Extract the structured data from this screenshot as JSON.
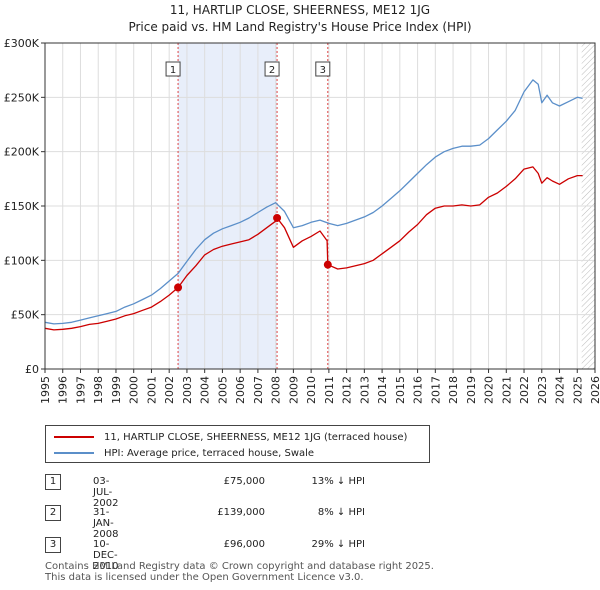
{
  "chart_data": {
    "type": "line",
    "title": "11, HARTLIP CLOSE, SHEERNESS, ME12 1JG",
    "subtitle": "Price paid vs. HM Land Registry's House Price Index (HPI)",
    "xlabel": "",
    "ylabel": "",
    "xlim": [
      1995,
      2026
    ],
    "ylim": [
      0,
      300000
    ],
    "x_ticks": [
      "1995",
      "1996",
      "1997",
      "1998",
      "1999",
      "2000",
      "2001",
      "2002",
      "2003",
      "2004",
      "2005",
      "2006",
      "2007",
      "2008",
      "2009",
      "2010",
      "2011",
      "2012",
      "2013",
      "2014",
      "2015",
      "2016",
      "2017",
      "2018",
      "2019",
      "2020",
      "2021",
      "2022",
      "2023",
      "2024",
      "2025",
      "2026"
    ],
    "y_ticks": [
      {
        "value": 0,
        "label": "£0"
      },
      {
        "value": 50000,
        "label": "£50K"
      },
      {
        "value": 100000,
        "label": "£100K"
      },
      {
        "value": 150000,
        "label": "£150K"
      },
      {
        "value": 200000,
        "label": "£200K"
      },
      {
        "value": 250000,
        "label": "£250K"
      },
      {
        "value": 300000,
        "label": "£300K"
      }
    ],
    "shaded_spans": [
      [
        2002.5,
        2008.08
      ],
      [
        2010.94,
        2010.94
      ]
    ],
    "hatched_from": 2025.25,
    "series": [
      {
        "name": "11, HARTLIP CLOSE, SHEERNESS, ME12 1JG (terraced house)",
        "color": "#cc0000",
        "x": [
          1995.0,
          1995.5,
          1996.0,
          1996.5,
          1997.0,
          1997.5,
          1998.0,
          1998.5,
          1999.0,
          1999.5,
          2000.0,
          2000.5,
          2001.0,
          2001.5,
          2002.0,
          2002.5,
          2003.0,
          2003.5,
          2004.0,
          2004.5,
          2005.0,
          2005.5,
          2006.0,
          2006.5,
          2007.0,
          2007.5,
          2008.0,
          2008.08,
          2008.5,
          2009.0,
          2009.5,
          2010.0,
          2010.5,
          2010.9,
          2010.94,
          2011.5,
          2012.0,
          2012.5,
          2013.0,
          2013.5,
          2014.0,
          2014.5,
          2015.0,
          2015.5,
          2016.0,
          2016.5,
          2017.0,
          2017.5,
          2018.0,
          2018.5,
          2019.0,
          2019.5,
          2020.0,
          2020.5,
          2021.0,
          2021.5,
          2022.0,
          2022.5,
          2022.8,
          2023.0,
          2023.3,
          2023.6,
          2024.0,
          2024.5,
          2025.0,
          2025.3
        ],
        "values": [
          37500,
          36000,
          36500,
          37500,
          39000,
          41000,
          42000,
          44000,
          46000,
          49000,
          51000,
          54000,
          57000,
          62000,
          68000,
          75000,
          86000,
          95000,
          105000,
          110000,
          113000,
          115000,
          117000,
          119000,
          124000,
          130000,
          136000,
          139000,
          130000,
          112000,
          118000,
          122000,
          127000,
          118000,
          96000,
          92000,
          93000,
          95000,
          97000,
          100000,
          106000,
          112000,
          118000,
          126000,
          133000,
          142000,
          148000,
          150000,
          150000,
          151000,
          150000,
          151000,
          158000,
          162000,
          168000,
          175000,
          184000,
          186000,
          180000,
          171000,
          176000,
          173000,
          170000,
          175000,
          178000,
          178000
        ]
      },
      {
        "name": "HPI: Average price, terraced house, Swale",
        "color": "#5b8fc9",
        "x": [
          1995.0,
          1995.5,
          1996.0,
          1996.5,
          1997.0,
          1997.5,
          1998.0,
          1998.5,
          1999.0,
          1999.5,
          2000.0,
          2000.5,
          2001.0,
          2001.5,
          2002.0,
          2002.5,
          2003.0,
          2003.5,
          2004.0,
          2004.5,
          2005.0,
          2005.5,
          2006.0,
          2006.5,
          2007.0,
          2007.5,
          2008.0,
          2008.5,
          2009.0,
          2009.5,
          2010.0,
          2010.5,
          2011.0,
          2011.5,
          2012.0,
          2012.5,
          2013.0,
          2013.5,
          2014.0,
          2014.5,
          2015.0,
          2015.5,
          2016.0,
          2016.5,
          2017.0,
          2017.5,
          2018.0,
          2018.5,
          2019.0,
          2019.5,
          2020.0,
          2020.5,
          2021.0,
          2021.5,
          2022.0,
          2022.5,
          2022.8,
          2023.0,
          2023.3,
          2023.6,
          2024.0,
          2024.5,
          2025.0,
          2025.3
        ],
        "values": [
          43000,
          41500,
          42000,
          43000,
          45000,
          47000,
          49000,
          51000,
          53000,
          57000,
          60000,
          64000,
          68000,
          74000,
          81000,
          88000,
          99000,
          110000,
          119000,
          125000,
          129000,
          132000,
          135000,
          139000,
          144000,
          149000,
          153000,
          145000,
          130000,
          132000,
          135000,
          137000,
          134000,
          132000,
          134000,
          137000,
          140000,
          144000,
          150000,
          157000,
          164000,
          172000,
          180000,
          188000,
          195000,
          200000,
          203000,
          205000,
          205000,
          206000,
          212000,
          220000,
          228000,
          238000,
          255000,
          266000,
          262000,
          245000,
          252000,
          245000,
          242000,
          246000,
          250000,
          249000
        ]
      }
    ],
    "sale_markers": [
      {
        "label": "1",
        "x": 2002.5,
        "value": 75000
      },
      {
        "label": "2",
        "x": 2008.08,
        "value": 139000
      },
      {
        "label": "3",
        "x": 2010.94,
        "value": 96000
      }
    ]
  },
  "legend": {
    "red_label": "11, HARTLIP CLOSE, SHEERNESS, ME12 1JG (terraced house)",
    "blue_label": "HPI: Average price, terraced house, Swale"
  },
  "sales": [
    {
      "num": "1",
      "date": "03-JUL-2002",
      "price": "£75,000",
      "hpi": "13% ↓ HPI"
    },
    {
      "num": "2",
      "date": "31-JAN-2008",
      "price": "£139,000",
      "hpi": "8% ↓ HPI"
    },
    {
      "num": "3",
      "date": "10-DEC-2010",
      "price": "£96,000",
      "hpi": "29% ↓ HPI"
    }
  ],
  "footer": {
    "line1": "Contains HM Land Registry data © Crown copyright and database right 2025.",
    "line2": "This data is licensed under the Open Government Licence v3.0."
  }
}
